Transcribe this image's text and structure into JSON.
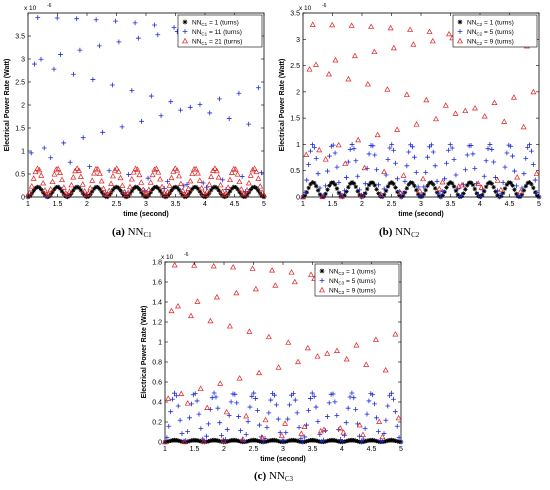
{
  "chart_data": [
    {
      "type": "scatter",
      "caption": {
        "label": "(a)",
        "name": "NN",
        "sub": "C1"
      },
      "xlabel": "time (second)",
      "ylabel": "Electrical Power Rate (Watt)",
      "y_multiplier": "x 10",
      "y_exponent": "-6",
      "xlim": [
        1,
        5
      ],
      "ylim": [
        0,
        4
      ],
      "xticks": [
        "1",
        "1.5",
        "2",
        "2.5",
        "3",
        "3.5",
        "4",
        "4.5",
        "5"
      ],
      "yticks": [
        "0",
        "0.5",
        "1",
        "1.5",
        "2",
        "2.5",
        "3",
        "3.5"
      ],
      "legend_position": "top-right",
      "series": [
        {
          "name": "NN",
          "sub": "C1",
          "legend": "= 1 (turns)",
          "marker": "star",
          "color": "#000000",
          "peak": 0.22,
          "trough": 0.0,
          "density": 0.032
        },
        {
          "name": "NN",
          "sub": "C1",
          "legend": "= 11 (turns)",
          "marker": "plus",
          "color": "#1f2bd6",
          "peak": 3.9,
          "trough": 0.0,
          "density": 0.055
        },
        {
          "name": "NN",
          "sub": "C1",
          "legend": "= 21 (turns)",
          "marker": "triangle",
          "color": "#e02020",
          "peak": 0.62,
          "trough": 0.05,
          "density": 0.032
        }
      ]
    },
    {
      "type": "scatter",
      "caption": {
        "label": "(b)",
        "name": "NN",
        "sub": "C2"
      },
      "xlabel": "time (second)",
      "ylabel": "Electrical Power Rate (Watt)",
      "y_multiplier": "x 10",
      "y_exponent": "-6",
      "xlim": [
        1,
        5
      ],
      "ylim": [
        0,
        3.5
      ],
      "xticks": [
        "1",
        "1.5",
        "2",
        "2.5",
        "3",
        "3.5",
        "4",
        "4.5",
        "5"
      ],
      "yticks": [
        "0",
        "0.5",
        "1",
        "1.5",
        "2",
        "2.5",
        "3",
        "3.5"
      ],
      "legend_position": "top-right",
      "series": [
        {
          "name": "NN",
          "sub": "C2",
          "legend": "= 1 (turns)",
          "marker": "star",
          "color": "#000000",
          "peak": 0.28,
          "trough": 0.0,
          "density": 0.032
        },
        {
          "name": "NN",
          "sub": "C2",
          "legend": "= 5 (turns)",
          "marker": "plus",
          "color": "#1f2bd6",
          "peak": 1.0,
          "trough": 0.0,
          "density": 0.032
        },
        {
          "name": "NN",
          "sub": "C2",
          "legend": "= 9 (turns)",
          "marker": "triangle",
          "color": "#e02020",
          "peak": 3.28,
          "trough": 0.0,
          "density": 0.055
        }
      ]
    },
    {
      "type": "scatter",
      "caption": {
        "label": "(c)",
        "name": "NN",
        "sub": "C3"
      },
      "xlabel": "time (second)",
      "ylabel": "Electrical Power Rate (Watt)",
      "y_multiplier": "x 10",
      "y_exponent": "-6",
      "xlim": [
        1,
        5
      ],
      "ylim": [
        0,
        1.8
      ],
      "xticks": [
        "1",
        "1.5",
        "2",
        "2.5",
        "3",
        "3.5",
        "4",
        "4.5",
        "5"
      ],
      "yticks": [
        "0",
        "0.2",
        "0.4",
        "0.6",
        "0.8",
        "1",
        "1.2",
        "1.4",
        "1.6",
        "1.8"
      ],
      "legend_position": "top-right",
      "series": [
        {
          "name": "NN",
          "sub": "C3",
          "legend": "= 1 (turns)",
          "marker": "star",
          "color": "#000000",
          "peak": 0.02,
          "trough": 0.0,
          "density": 0.032
        },
        {
          "name": "NN",
          "sub": "C3",
          "legend": "= 5 (turns)",
          "marker": "plus",
          "color": "#1f2bd6",
          "peak": 0.49,
          "trough": 0.0,
          "density": 0.032
        },
        {
          "name": "NN",
          "sub": "C3",
          "legend": "= 9 (turns)",
          "marker": "triangle",
          "color": "#e02020",
          "peak": 1.77,
          "trough": 0.0,
          "density": 0.055
        }
      ]
    }
  ],
  "oscillation": {
    "frequency_hz": 3.0
  }
}
